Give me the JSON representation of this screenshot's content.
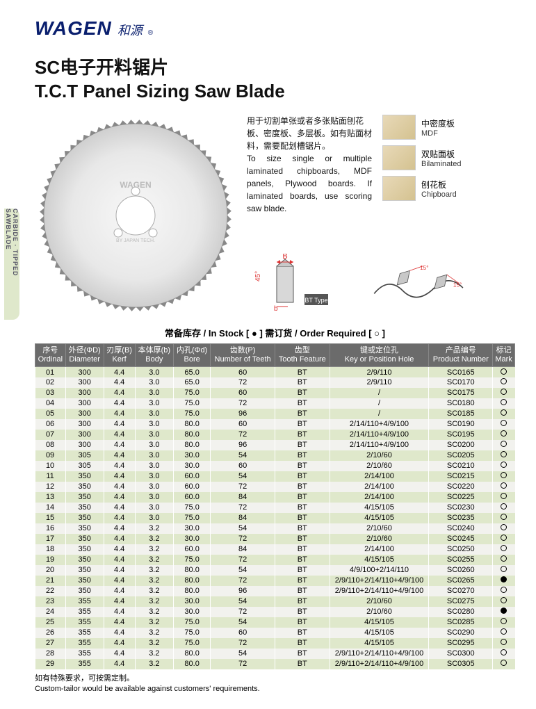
{
  "logo": {
    "brand": "WAGEN",
    "cn": "和源",
    "reg": "®"
  },
  "title": {
    "cn": "SC电子开料锯片",
    "en": "T.C.T Panel Sizing Saw Blade"
  },
  "sideTab": "CARBIDE · TIPPED SAWBLADE",
  "description": {
    "cn": "用于切割单张或者多张贴面刨花板、密度板、多层板。如有贴面材料，需要配划槽锯片。",
    "en": "To size single or multiple laminated chipboards, MDF panels, Plywood boards. If laminated boards, use scoring saw blade."
  },
  "materials": [
    {
      "cn": "中密度板",
      "en": "MDF"
    },
    {
      "cn": "双贴面板",
      "en": "Bilaminated"
    },
    {
      "cn": "刨花板",
      "en": "Chipboard"
    }
  ],
  "diagrams": {
    "bt_label": "BT Type",
    "b_label": "B",
    "b_small": "b",
    "angle45": "45°",
    "angle15a": "15°",
    "angle15b": "15°"
  },
  "stockLegend": "常备库存 / In Stock [ ● ]    需订货 / Order Required [ ○ ]",
  "columns": [
    {
      "cn": "序号",
      "en": "Ordinal"
    },
    {
      "cn": "外径(ΦD)",
      "en": "Diameter"
    },
    {
      "cn": "刃厚(B)",
      "en": "Kerf"
    },
    {
      "cn": "本体厚(b)",
      "en": "Body"
    },
    {
      "cn": "内孔(Φd)",
      "en": "Bore"
    },
    {
      "cn": "齿数(P)",
      "en": "Number of Teeth"
    },
    {
      "cn": "齿型",
      "en": "Tooth Feature"
    },
    {
      "cn": "键或定位孔",
      "en": "Key or Position Hole"
    },
    {
      "cn": "产品编号",
      "en": "Product Number"
    },
    {
      "cn": "标记",
      "en": "Mark"
    }
  ],
  "rows": [
    [
      "01",
      "300",
      "4.4",
      "3.0",
      "65.0",
      "60",
      "BT",
      "2/9/110",
      "SC0165",
      "○"
    ],
    [
      "02",
      "300",
      "4.4",
      "3.0",
      "65.0",
      "72",
      "BT",
      "2/9/110",
      "SC0170",
      "○"
    ],
    [
      "03",
      "300",
      "4.4",
      "3.0",
      "75.0",
      "60",
      "BT",
      "/",
      "SC0175",
      "○"
    ],
    [
      "04",
      "300",
      "4.4",
      "3.0",
      "75.0",
      "72",
      "BT",
      "/",
      "SC0180",
      "○"
    ],
    [
      "05",
      "300",
      "4.4",
      "3.0",
      "75.0",
      "96",
      "BT",
      "/",
      "SC0185",
      "○"
    ],
    [
      "06",
      "300",
      "4.4",
      "3.0",
      "80.0",
      "60",
      "BT",
      "2/14/110+4/9/100",
      "SC0190",
      "○"
    ],
    [
      "07",
      "300",
      "4.4",
      "3.0",
      "80.0",
      "72",
      "BT",
      "2/14/110+4/9/100",
      "SC0195",
      "○"
    ],
    [
      "08",
      "300",
      "4.4",
      "3.0",
      "80.0",
      "96",
      "BT",
      "2/14/110+4/9/100",
      "SC0200",
      "○"
    ],
    [
      "09",
      "305",
      "4.4",
      "3.0",
      "30.0",
      "54",
      "BT",
      "2/10/60",
      "SC0205",
      "○"
    ],
    [
      "10",
      "305",
      "4.4",
      "3.0",
      "30.0",
      "60",
      "BT",
      "2/10/60",
      "SC0210",
      "○"
    ],
    [
      "11",
      "350",
      "4.4",
      "3.0",
      "60.0",
      "54",
      "BT",
      "2/14/100",
      "SC0215",
      "○"
    ],
    [
      "12",
      "350",
      "4.4",
      "3.0",
      "60.0",
      "72",
      "BT",
      "2/14/100",
      "SC0220",
      "○"
    ],
    [
      "13",
      "350",
      "4.4",
      "3.0",
      "60.0",
      "84",
      "BT",
      "2/14/100",
      "SC0225",
      "○"
    ],
    [
      "14",
      "350",
      "4.4",
      "3.0",
      "75.0",
      "72",
      "BT",
      "4/15/105",
      "SC0230",
      "○"
    ],
    [
      "15",
      "350",
      "4.4",
      "3.0",
      "75.0",
      "84",
      "BT",
      "4/15/105",
      "SC0235",
      "○"
    ],
    [
      "16",
      "350",
      "4.4",
      "3.2",
      "30.0",
      "54",
      "BT",
      "2/10/60",
      "SC0240",
      "○"
    ],
    [
      "17",
      "350",
      "4.4",
      "3.2",
      "30.0",
      "72",
      "BT",
      "2/10/60",
      "SC0245",
      "○"
    ],
    [
      "18",
      "350",
      "4.4",
      "3.2",
      "60.0",
      "84",
      "BT",
      "2/14/100",
      "SC0250",
      "○"
    ],
    [
      "19",
      "350",
      "4.4",
      "3.2",
      "75.0",
      "72",
      "BT",
      "4/15/105",
      "SC0255",
      "○"
    ],
    [
      "20",
      "350",
      "4.4",
      "3.2",
      "80.0",
      "54",
      "BT",
      "4/9/100+2/14/110",
      "SC0260",
      "○"
    ],
    [
      "21",
      "350",
      "4.4",
      "3.2",
      "80.0",
      "72",
      "BT",
      "2/9/110+2/14/110+4/9/100",
      "SC0265",
      "●"
    ],
    [
      "22",
      "350",
      "4.4",
      "3.2",
      "80.0",
      "96",
      "BT",
      "2/9/110+2/14/110+4/9/100",
      "SC0270",
      "○"
    ],
    [
      "23",
      "355",
      "4.4",
      "3.2",
      "30.0",
      "54",
      "BT",
      "2/10/60",
      "SC0275",
      "○"
    ],
    [
      "24",
      "355",
      "4.4",
      "3.2",
      "30.0",
      "72",
      "BT",
      "2/10/60",
      "SC0280",
      "●"
    ],
    [
      "25",
      "355",
      "4.4",
      "3.2",
      "75.0",
      "54",
      "BT",
      "4/15/105",
      "SC0285",
      "○"
    ],
    [
      "26",
      "355",
      "4.4",
      "3.2",
      "75.0",
      "60",
      "BT",
      "4/15/105",
      "SC0290",
      "○"
    ],
    [
      "27",
      "355",
      "4.4",
      "3.2",
      "75.0",
      "72",
      "BT",
      "4/15/105",
      "SC0295",
      "○"
    ],
    [
      "28",
      "355",
      "4.4",
      "3.2",
      "80.0",
      "54",
      "BT",
      "2/9/110+2/14/110+4/9/100",
      "SC0300",
      "○"
    ],
    [
      "29",
      "355",
      "4.4",
      "3.2",
      "80.0",
      "72",
      "BT",
      "2/9/110+2/14/110+4/9/100",
      "SC0305",
      "○"
    ]
  ],
  "footer": {
    "cn": "如有特殊要求，可按需定制。",
    "en": "Custom-tailor would be available against customers' requirements."
  },
  "colors": {
    "headerBg": "#6b6b6b",
    "oddRow": "#dfe8cb",
    "evenRow": "#f2f2ee",
    "brand": "#0a1f6e"
  }
}
